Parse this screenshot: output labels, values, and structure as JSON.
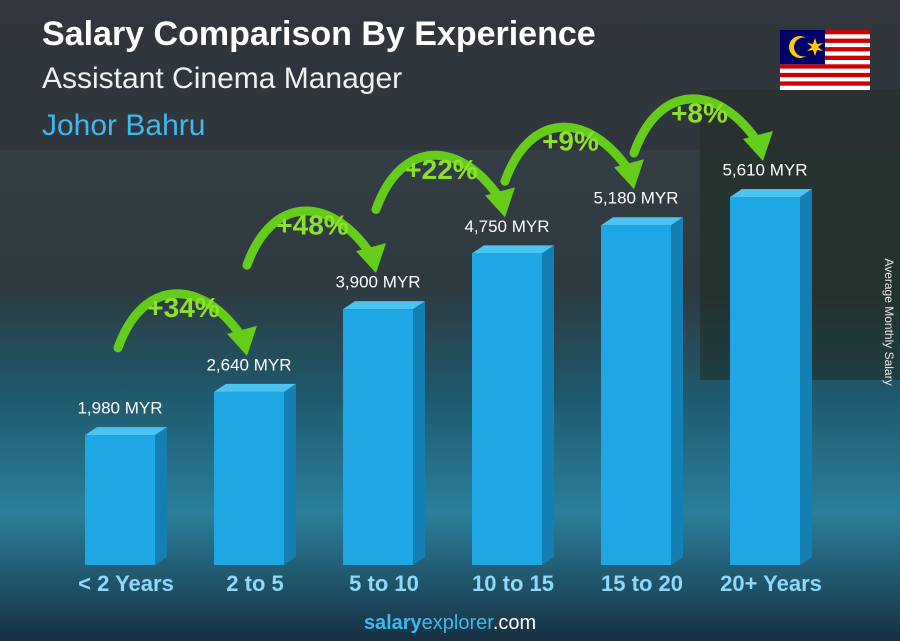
{
  "chart_data": {
    "type": "bar3d",
    "title": "Salary Comparison By Experience",
    "subtitle": "Assistant Cinema Manager",
    "location": "Johor Bahru",
    "y_label": "Average Monthly Salary",
    "categories": [
      "< 2 Years",
      "2 to 5",
      "5 to 10",
      "10 to 15",
      "15 to 20",
      "20+ Years"
    ],
    "values": [
      1980,
      2640,
      3900,
      4750,
      5180,
      5610
    ],
    "value_labels": [
      "1,980 MYR",
      "2,640 MYR",
      "3,900 MYR",
      "4,750 MYR",
      "5,180 MYR",
      "5,610 MYR"
    ],
    "changes": [
      "+34%",
      "+48%",
      "+22%",
      "+9%",
      "+8%"
    ],
    "color": "#1ea7e4",
    "footer": [
      "salary",
      "explorer",
      ".com"
    ]
  }
}
